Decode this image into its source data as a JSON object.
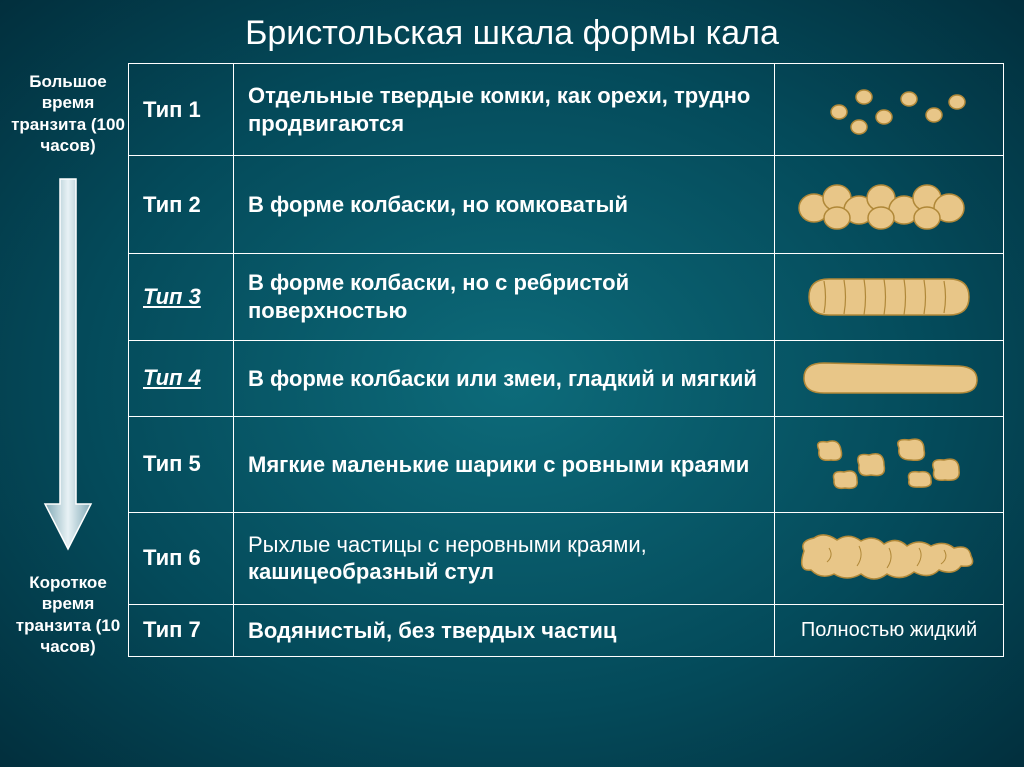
{
  "title": "Бристольская шкала формы кала",
  "transit": {
    "top": "Большое время транзита (100 часов)",
    "bottom": "Короткое время транзита (10 часов)"
  },
  "rows": [
    {
      "type": "Тип 1",
      "underline": false,
      "desc": "Отдельные твердые комки, как орехи, трудно продвигаются",
      "img": "type1"
    },
    {
      "type": "Тип 2",
      "underline": false,
      "desc": "В форме колбаски, но комковатый",
      "img": "type2"
    },
    {
      "type": "Тип 3",
      "underline": true,
      "desc": "В форме колбаски, но  с ребристой поверхностью",
      "img": "type3"
    },
    {
      "type": "Тип 4",
      "underline": true,
      "desc": "В форме колбаски или змеи, гладкий и мягкий",
      "img": "type4"
    },
    {
      "type": "Тип 5",
      "underline": false,
      "desc": "Мягкие маленькие шарики с ровными краями",
      "img": "type5"
    },
    {
      "type": "Тип 6",
      "underline": false,
      "desc_html": "<span class='light'>Рыхлые частицы с неровными краями, </span>кашицеобразный стул",
      "img": "type6"
    },
    {
      "type": "Тип 7",
      "underline": false,
      "desc": "Водянистый, без твердых частиц",
      "liquid": "Полностью жидкий"
    }
  ],
  "colors": {
    "fill": "#e8c688",
    "stroke": "#b08838",
    "arrow_fill": "#d9e8ec",
    "arrow_stroke": "#ffffff"
  }
}
